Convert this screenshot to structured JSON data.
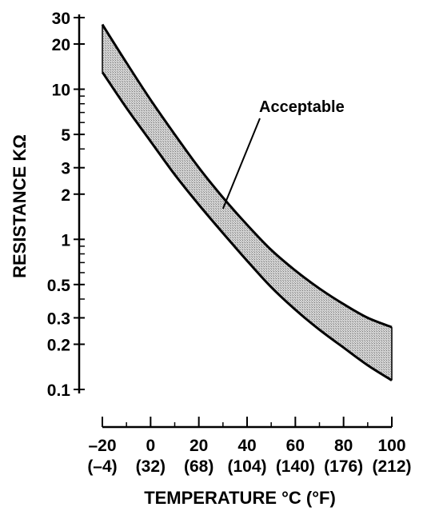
{
  "chart_data": {
    "type": "area",
    "title": "",
    "xlabel": "TEMPERATURE °C (°F)",
    "ylabel": "RESISTANCE KΩ",
    "x_scale": "linear",
    "y_scale": "log",
    "xlim": [
      -25,
      100
    ],
    "ylim": [
      0.1,
      30
    ],
    "x_ticks": [
      {
        "value": -20,
        "label": "–20",
        "sublabel": "(–4)"
      },
      {
        "value": 0,
        "label": "0",
        "sublabel": "(32)"
      },
      {
        "value": 20,
        "label": "20",
        "sublabel": "(68)"
      },
      {
        "value": 40,
        "label": "40",
        "sublabel": "(104)"
      },
      {
        "value": 60,
        "label": "60",
        "sublabel": "(140)"
      },
      {
        "value": 80,
        "label": "80",
        "sublabel": "(176)"
      },
      {
        "value": 100,
        "label": "100",
        "sublabel": "(212)"
      }
    ],
    "y_ticks": [
      {
        "value": 30,
        "label": "30"
      },
      {
        "value": 20,
        "label": "20"
      },
      {
        "value": 10,
        "label": "10"
      },
      {
        "value": 5,
        "label": "5"
      },
      {
        "value": 3,
        "label": "3"
      },
      {
        "value": 2,
        "label": "2"
      },
      {
        "value": 1,
        "label": "1"
      },
      {
        "value": 0.5,
        "label": "0.5"
      },
      {
        "value": 0.3,
        "label": "0.3"
      },
      {
        "value": 0.2,
        "label": "0.2"
      },
      {
        "value": 0.1,
        "label": "0.1"
      }
    ],
    "x": [
      -20,
      -10,
      0,
      10,
      20,
      30,
      40,
      50,
      60,
      70,
      80,
      90,
      100
    ],
    "series": [
      {
        "name": "",
        "values": [
          27,
          15,
          8.5,
          5.0,
          3.0,
          1.9,
          1.25,
          0.85,
          0.62,
          0.47,
          0.37,
          0.3,
          0.26
        ]
      },
      {
        "name": "",
        "values": [
          13,
          7.5,
          4.5,
          2.7,
          1.7,
          1.1,
          0.72,
          0.48,
          0.34,
          0.25,
          0.19,
          0.145,
          0.115
        ]
      }
    ],
    "band_fill": "#b9b9b9",
    "annotations": [
      {
        "text": "Acceptable",
        "x": 30,
        "y": 1.6
      }
    ],
    "grid": false,
    "legend": "none"
  }
}
